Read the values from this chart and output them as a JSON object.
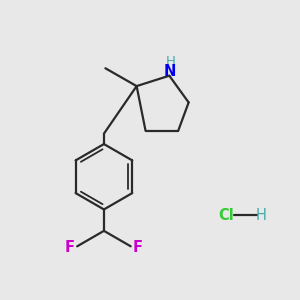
{
  "background_color": "#e8e8e8",
  "bond_color": "#2a2a2a",
  "N_color": "#0000ee",
  "F_color": "#cc00cc",
  "Cl_color": "#33cc33",
  "H_teal_color": "#44aaaa",
  "figsize": [
    3.0,
    3.0
  ],
  "dpi": 100,
  "xlim": [
    0,
    10
  ],
  "ylim": [
    0,
    10
  ]
}
